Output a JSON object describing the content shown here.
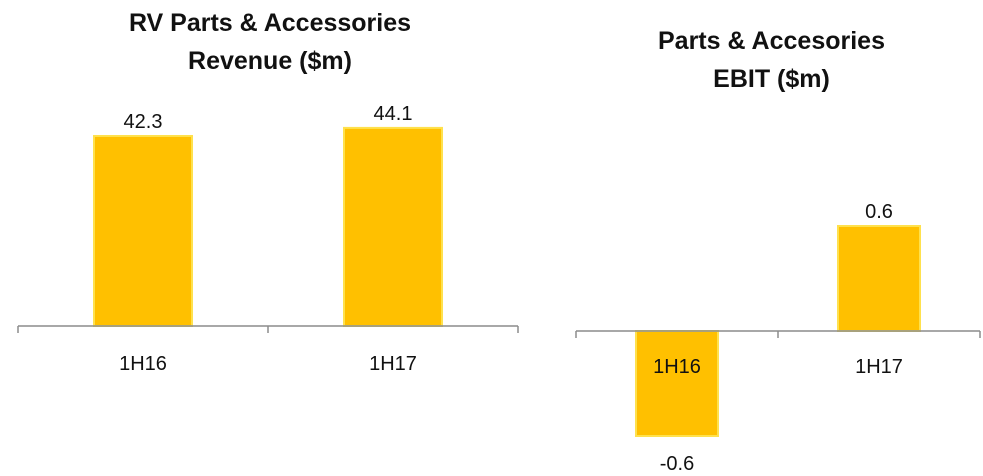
{
  "chart_data": [
    {
      "type": "bar",
      "title": "RV Parts & Accessories\nRevenue ($m)",
      "categories": [
        "1H16",
        "1H17"
      ],
      "values": [
        42.3,
        44.1
      ],
      "data_labels": [
        "42.3",
        "44.1"
      ],
      "ylim": [
        0,
        45
      ],
      "grid": false,
      "colors": {
        "bar": "#FFC000",
        "bar_edge": "#FFE14D",
        "axis": "#8c8c8c"
      }
    },
    {
      "type": "bar",
      "title": "Parts & Accesories\nEBIT ($m)",
      "categories": [
        "1H16",
        "1H17"
      ],
      "values": [
        -0.6,
        0.6
      ],
      "data_labels": [
        "-0.6",
        "0.6"
      ],
      "ylim": [
        -0.6,
        0.72
      ],
      "grid": false,
      "colors": {
        "bar": "#FFC000",
        "bar_edge": "#FFE14D",
        "axis": "#8c8c8c"
      }
    }
  ]
}
